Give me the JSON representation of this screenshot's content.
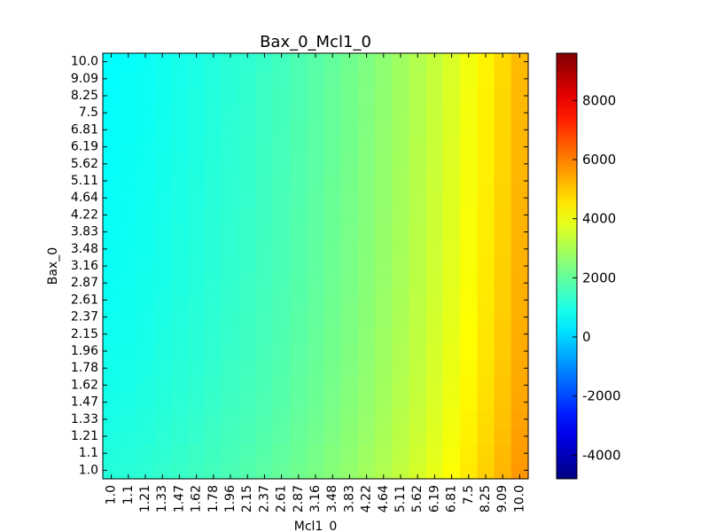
{
  "chart_data": {
    "type": "heatmap",
    "title": "Bax_0_Mcl1_0",
    "xlabel": "Mcl1_0",
    "ylabel": "Bax_0",
    "x_ticks": [
      "1.0",
      "1.1",
      "1.21",
      "1.33",
      "1.47",
      "1.62",
      "1.78",
      "1.96",
      "2.15",
      "2.37",
      "2.61",
      "2.87",
      "3.16",
      "3.48",
      "3.83",
      "4.22",
      "4.64",
      "5.11",
      "5.62",
      "6.19",
      "6.81",
      "7.5",
      "8.25",
      "9.09",
      "10.0"
    ],
    "y_ticks": [
      "1.0",
      "1.1",
      "1.21",
      "1.33",
      "1.47",
      "1.62",
      "1.78",
      "1.96",
      "2.15",
      "2.37",
      "2.61",
      "2.87",
      "3.16",
      "3.48",
      "3.83",
      "4.22",
      "4.64",
      "5.11",
      "5.62",
      "6.19",
      "6.81",
      "7.5",
      "8.25",
      "9.09",
      "10.0"
    ],
    "colorbar": {
      "min": -4800,
      "max": 9600,
      "colormap": "jet",
      "ticks": [
        "-4000",
        "-2000",
        "0",
        "2000",
        "4000",
        "6000",
        "8000"
      ],
      "tick_values": [
        -4000,
        -2000,
        0,
        2000,
        4000,
        6000,
        8000
      ]
    },
    "column_base_values": [
      700,
      760,
      820,
      900,
      980,
      1060,
      1150,
      1250,
      1360,
      1480,
      1610,
      1760,
      1920,
      2090,
      2270,
      2470,
      2690,
      2930,
      3190,
      3470,
      3770,
      4100,
      4450,
      4830,
      5250
    ],
    "row_offsets_bottom_to_top": [
      400,
      340,
      290,
      250,
      210,
      180,
      150,
      120,
      100,
      80,
      60,
      45,
      30,
      20,
      10,
      0,
      -10,
      -20,
      -30,
      -40,
      -50,
      -60,
      -70,
      -80,
      -90
    ]
  }
}
